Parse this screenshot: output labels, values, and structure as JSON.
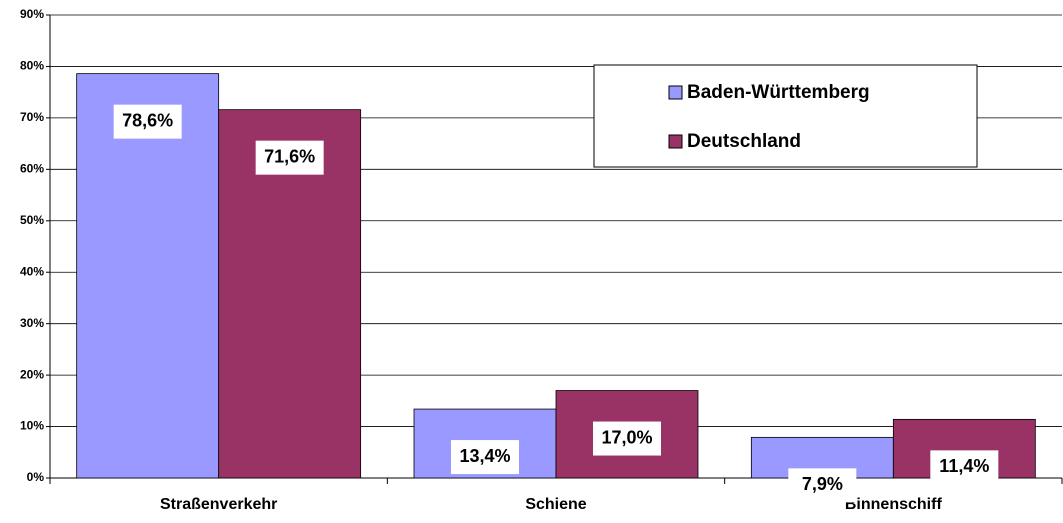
{
  "chart_data": {
    "type": "bar",
    "categories": [
      "Straßenverkehr",
      "Schiene",
      "Binnenschiff"
    ],
    "series": [
      {
        "name": "Baden-Württemberg",
        "color": "#9999ff",
        "values": [
          78.6,
          13.4,
          7.9
        ],
        "value_labels": [
          "78,6%",
          "13,4%",
          "7,9%"
        ]
      },
      {
        "name": "Deutschland",
        "color": "#993366",
        "values": [
          71.6,
          17.0,
          11.4
        ],
        "value_labels": [
          "71,6%",
          "17,0%",
          "11,4%"
        ]
      }
    ],
    "ylim": [
      0,
      90
    ],
    "yticks": [
      {
        "value": 0,
        "label": "0%"
      },
      {
        "value": 10,
        "label": "10%"
      },
      {
        "value": 20,
        "label": "20%"
      },
      {
        "value": 30,
        "label": "30%"
      },
      {
        "value": 40,
        "label": "40%"
      },
      {
        "value": 50,
        "label": "50%"
      },
      {
        "value": 60,
        "label": "60%"
      },
      {
        "value": 70,
        "label": "70%"
      },
      {
        "value": 80,
        "label": "80%"
      },
      {
        "value": 90,
        "label": "90%"
      }
    ],
    "grid": true,
    "legend": "top-right"
  }
}
